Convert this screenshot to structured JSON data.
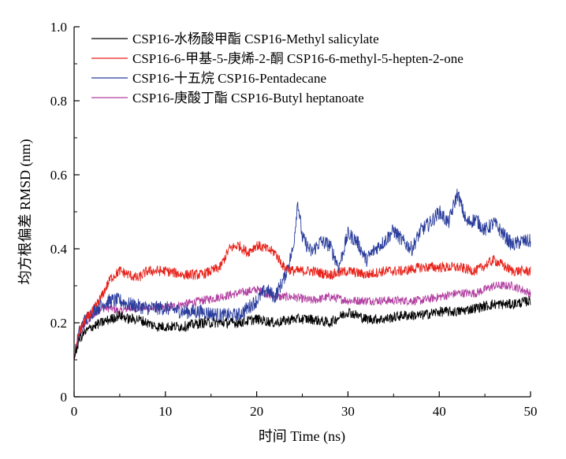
{
  "chart_data": {
    "type": "line",
    "title": "",
    "xlabel": "时间 Time (ns)",
    "ylabel": "均方根偏差 RMSD (nm)",
    "xlim": [
      0,
      50
    ],
    "ylim": [
      0,
      1.0
    ],
    "x_ticks": [
      "0",
      "10",
      "20",
      "30",
      "40",
      "50"
    ],
    "y_ticks": [
      "0",
      "0.2",
      "0.4",
      "0.6",
      "0.8",
      "1.0"
    ],
    "grid": false,
    "legend_position": "top-left",
    "series": [
      {
        "name": "CSP16-水杨酸甲酯 CSP16-Methyl salicylate",
        "color": "#000000",
        "x": [
          0,
          0.5,
          1,
          2,
          3,
          4,
          5,
          6,
          7,
          8,
          9,
          10,
          12,
          14,
          16,
          18,
          20,
          22,
          24,
          26,
          28,
          30,
          32,
          34,
          36,
          38,
          40,
          42,
          44,
          46,
          48,
          50
        ],
        "y": [
          0.1,
          0.15,
          0.17,
          0.19,
          0.2,
          0.21,
          0.22,
          0.21,
          0.21,
          0.2,
          0.19,
          0.19,
          0.19,
          0.2,
          0.2,
          0.2,
          0.21,
          0.2,
          0.21,
          0.21,
          0.2,
          0.23,
          0.21,
          0.21,
          0.22,
          0.22,
          0.23,
          0.23,
          0.24,
          0.25,
          0.25,
          0.26
        ]
      },
      {
        "name": "CSP16-6-甲基-5-庚烯-2-酮 CSP16-6-methyl-5-hepten-2-one",
        "color": "#e8221a",
        "x": [
          0,
          0.5,
          1,
          2,
          3,
          4,
          5,
          6,
          7,
          8,
          10,
          12,
          14,
          16,
          17,
          18,
          19,
          20,
          21,
          22,
          23,
          24,
          26,
          28,
          30,
          32,
          34,
          36,
          38,
          40,
          42,
          44,
          46,
          48,
          50
        ],
        "y": [
          0.1,
          0.17,
          0.2,
          0.23,
          0.27,
          0.32,
          0.34,
          0.33,
          0.32,
          0.34,
          0.34,
          0.33,
          0.33,
          0.35,
          0.4,
          0.41,
          0.39,
          0.41,
          0.4,
          0.39,
          0.35,
          0.34,
          0.34,
          0.33,
          0.34,
          0.33,
          0.34,
          0.34,
          0.35,
          0.35,
          0.35,
          0.34,
          0.37,
          0.34,
          0.34
        ]
      },
      {
        "name": "CSP16-十五烷 CSP16-Pentadecane",
        "color": "#2a3d9c",
        "x": [
          0,
          0.5,
          1,
          2,
          3,
          4,
          5,
          6,
          8,
          10,
          12,
          14,
          16,
          18,
          20,
          21,
          22,
          23,
          24,
          24.5,
          25,
          26,
          27,
          28,
          29,
          30,
          31,
          32,
          33,
          34,
          35,
          36,
          37,
          38,
          39,
          40,
          41,
          42,
          43,
          44,
          45,
          46,
          47,
          48,
          49,
          50
        ],
        "y": [
          0.1,
          0.17,
          0.2,
          0.23,
          0.25,
          0.26,
          0.26,
          0.25,
          0.24,
          0.24,
          0.23,
          0.23,
          0.22,
          0.22,
          0.26,
          0.29,
          0.27,
          0.32,
          0.4,
          0.53,
          0.43,
          0.39,
          0.42,
          0.41,
          0.35,
          0.44,
          0.42,
          0.37,
          0.4,
          0.42,
          0.45,
          0.42,
          0.4,
          0.45,
          0.47,
          0.5,
          0.47,
          0.55,
          0.47,
          0.48,
          0.45,
          0.47,
          0.44,
          0.41,
          0.42,
          0.42
        ]
      },
      {
        "name": "CSP16-庚酸丁酯 CSP16-Butyl  heptanoate",
        "color": "#b23fa0",
        "x": [
          0,
          0.5,
          1,
          2,
          3,
          4,
          5,
          6,
          8,
          10,
          12,
          14,
          16,
          18,
          20,
          22,
          24,
          26,
          28,
          30,
          32,
          34,
          36,
          38,
          40,
          42,
          44,
          46,
          48,
          50
        ],
        "y": [
          0.1,
          0.16,
          0.19,
          0.22,
          0.24,
          0.24,
          0.23,
          0.24,
          0.24,
          0.24,
          0.25,
          0.26,
          0.27,
          0.28,
          0.29,
          0.27,
          0.27,
          0.26,
          0.27,
          0.26,
          0.26,
          0.26,
          0.26,
          0.26,
          0.27,
          0.28,
          0.28,
          0.3,
          0.3,
          0.28
        ]
      }
    ]
  }
}
